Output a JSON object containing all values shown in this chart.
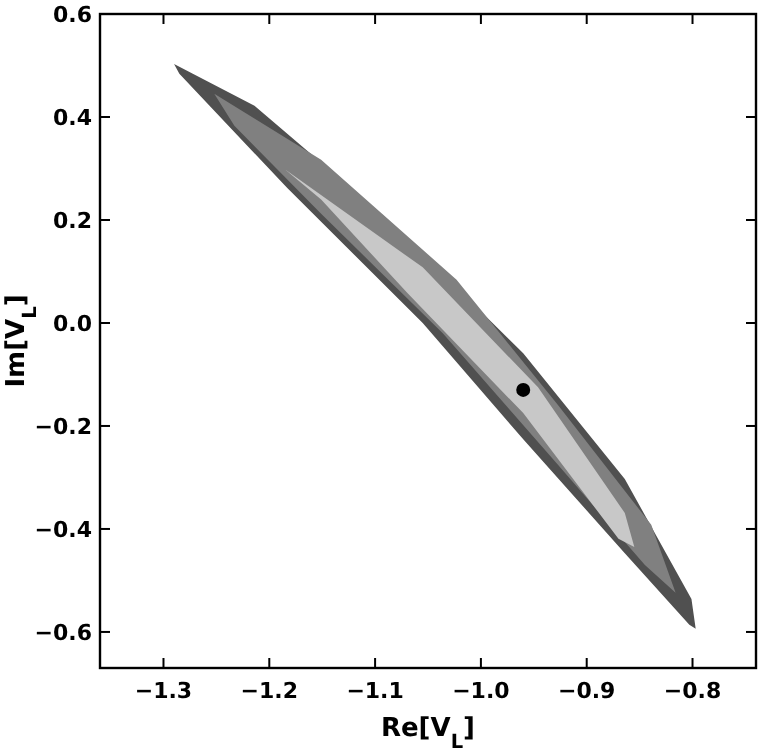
{
  "chart_data": {
    "type": "area",
    "xlabel": "Re[V$_{L}$]",
    "ylabel": "Im[V$_{L}$]",
    "xlim": [
      -1.36,
      -0.74
    ],
    "ylim": [
      -0.67,
      0.6
    ],
    "xticks": [
      {
        "value": -1.3,
        "label": "−1.3"
      },
      {
        "value": -1.2,
        "label": "−1.2"
      },
      {
        "value": -1.1,
        "label": "−1.1"
      },
      {
        "value": -1.0,
        "label": "−1.0"
      },
      {
        "value": -0.9,
        "label": "−0.9"
      },
      {
        "value": -0.8,
        "label": "−0.8"
      }
    ],
    "yticks": [
      {
        "value": -0.6,
        "label": "−0.6"
      },
      {
        "value": -0.4,
        "label": "−0.4"
      },
      {
        "value": -0.2,
        "label": "−0.2"
      },
      {
        "value": 0,
        "label": "0.0"
      },
      {
        "value": 0.2,
        "label": "0.2"
      },
      {
        "value": 0.4,
        "label": "0.4"
      },
      {
        "value": 0.6,
        "label": "0.6"
      }
    ],
    "grid": false,
    "series": [
      {
        "color": "#505050",
        "x": [
          -1.29,
          -1.214,
          -1.088,
          -0.96,
          -0.864,
          -0.801,
          -0.797,
          -0.803,
          -0.864,
          -0.96,
          -1.055,
          -1.183,
          -1.285
        ],
        "values": [
          0.503,
          0.422,
          0.201,
          -0.059,
          -0.303,
          -0.536,
          -0.594,
          -0.586,
          -0.447,
          -0.226,
          0.0,
          0.262,
          0.484
        ]
      },
      {
        "color": "#808080",
        "x": [
          -1.252,
          -1.151,
          -1.023,
          -0.927,
          -0.839,
          -0.816,
          -0.845,
          -0.927,
          -1.036,
          -1.151,
          -1.233
        ],
        "values": [
          0.445,
          0.317,
          0.084,
          -0.16,
          -0.392,
          -0.524,
          -0.47,
          -0.276,
          -0.02,
          0.212,
          0.383
        ]
      },
      {
        "color": "#c8c8c8",
        "x": [
          -1.185,
          -1.055,
          -0.946,
          -0.864,
          -0.855,
          -0.87,
          -0.96,
          -1.069,
          -1.151
        ],
        "values": [
          0.298,
          0.108,
          -0.125,
          -0.369,
          -0.435,
          -0.419,
          -0.175,
          0.057,
          0.24
        ]
      },
      {
        "type": "scatter",
        "color": "#000000",
        "x": [
          -0.96
        ],
        "values": [
          -0.13
        ],
        "marker": "circle"
      }
    ]
  }
}
